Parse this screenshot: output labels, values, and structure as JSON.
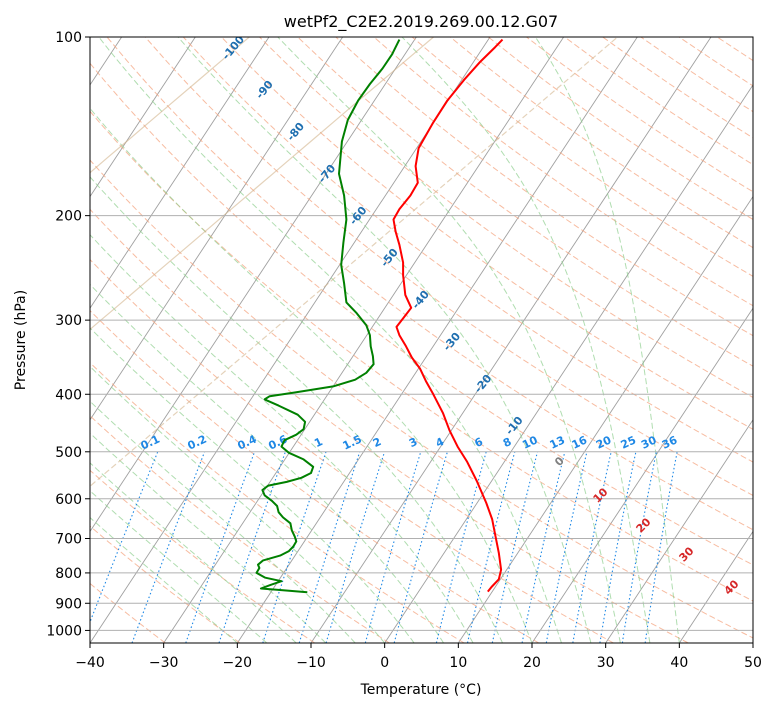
{
  "chart_data": {
    "type": "line",
    "title": "wetPf2_C2E2.2019.269.00.12.G07",
    "xlabel": "Temperature (°C)",
    "ylabel": "Pressure (hPa)",
    "xlim": [
      -40,
      50
    ],
    "ylim": [
      1050,
      100
    ],
    "y_scale": "log",
    "x_ticks": [
      -40,
      -30,
      -20,
      -10,
      0,
      10,
      20,
      30,
      40,
      50
    ],
    "y_ticks": [
      100,
      200,
      300,
      400,
      500,
      600,
      700,
      800,
      900,
      1000
    ],
    "grid": true,
    "colors": {
      "temperature": "#ff0000",
      "dewpoint": "#008000",
      "isotherm": "#a0a0a0",
      "dry_adiabat": "#f4a582",
      "moist_adiabat": "#8fcf8f",
      "mixing_ratio": "#1e88e5",
      "moist_label": "#1f6fb0",
      "dry_label": "#d62728",
      "lcl_curve": "#d2b48c"
    },
    "series": [
      {
        "key": "temperature",
        "points": [
          [
            14.0,
            860
          ],
          [
            14.5,
            845
          ],
          [
            15.5,
            820
          ],
          [
            15.8,
            790
          ],
          [
            15.5,
            740
          ],
          [
            15.0,
            690
          ],
          [
            14.6,
            650
          ],
          [
            13.8,
            610
          ],
          [
            12.5,
            560
          ],
          [
            11.2,
            520
          ],
          [
            9.9,
            490
          ],
          [
            8.8,
            460
          ],
          [
            7.9,
            430
          ],
          [
            6.6,
            400
          ],
          [
            5.6,
            380
          ],
          [
            4.8,
            362
          ],
          [
            3.7,
            347
          ],
          [
            2.9,
            332
          ],
          [
            2.0,
            318
          ],
          [
            1.6,
            308
          ],
          [
            2.5,
            298
          ],
          [
            3.6,
            286
          ],
          [
            2.8,
            272
          ],
          [
            2.5,
            252
          ],
          [
            2.5,
            240
          ],
          [
            2.0,
            224
          ],
          [
            1.5,
            213
          ],
          [
            1.2,
            203
          ],
          [
            2.0,
            195
          ],
          [
            3.5,
            185
          ],
          [
            4.5,
            176
          ],
          [
            4.2,
            165
          ],
          [
            4.6,
            154
          ],
          [
            6.5,
            140
          ],
          [
            8.5,
            128
          ],
          [
            10.8,
            118
          ],
          [
            13.0,
            110
          ],
          [
            15.0,
            104
          ],
          [
            16.0,
            101
          ]
        ]
      },
      {
        "key": "dewpoint",
        "points": [
          [
            -10.5,
            862
          ],
          [
            -14.0,
            855
          ],
          [
            -16.8,
            850
          ],
          [
            -15.5,
            838
          ],
          [
            -14.0,
            826
          ],
          [
            -16.2,
            815
          ],
          [
            -17.4,
            800
          ],
          [
            -17.0,
            785
          ],
          [
            -17.2,
            775
          ],
          [
            -16.5,
            762
          ],
          [
            -14.2,
            748
          ],
          [
            -13.0,
            735
          ],
          [
            -12.4,
            722
          ],
          [
            -12.0,
            708
          ],
          [
            -12.2,
            695
          ],
          [
            -12.6,
            678
          ],
          [
            -12.8,
            660
          ],
          [
            -13.8,
            645
          ],
          [
            -14.4,
            632
          ],
          [
            -14.6,
            617
          ],
          [
            -15.3,
            605
          ],
          [
            -16.3,
            592
          ],
          [
            -16.6,
            580
          ],
          [
            -15.8,
            570
          ],
          [
            -13.3,
            562
          ],
          [
            -11.3,
            553
          ],
          [
            -10.0,
            543
          ],
          [
            -9.7,
            530
          ],
          [
            -11.0,
            515
          ],
          [
            -13.0,
            502
          ],
          [
            -14.0,
            490
          ],
          [
            -13.6,
            478
          ],
          [
            -12.0,
            468
          ],
          [
            -11.0,
            458
          ],
          [
            -10.8,
            445
          ],
          [
            -11.8,
            433
          ],
          [
            -14.4,
            418
          ],
          [
            -16.3,
            408
          ],
          [
            -15.6,
            403
          ],
          [
            -12.0,
            397
          ],
          [
            -7.0,
            388
          ],
          [
            -4.0,
            378
          ],
          [
            -2.5,
            368
          ],
          [
            -1.5,
            356
          ],
          [
            -1.6,
            345
          ],
          [
            -1.9,
            332
          ],
          [
            -2.0,
            318
          ],
          [
            -2.5,
            306
          ],
          [
            -3.8,
            292
          ],
          [
            -5.2,
            280
          ],
          [
            -5.5,
            260
          ],
          [
            -5.9,
            242
          ],
          [
            -5.6,
            222
          ],
          [
            -5.2,
            203
          ],
          [
            -5.5,
            185
          ],
          [
            -6.2,
            170
          ],
          [
            -5.8,
            150
          ],
          [
            -5.0,
            138
          ],
          [
            -3.6,
            128
          ],
          [
            -2.0,
            120
          ],
          [
            -0.3,
            113
          ],
          [
            1.0,
            107
          ],
          [
            2.0,
            101
          ]
        ]
      }
    ],
    "moist_adiabat_labels": [
      "-100",
      "-90",
      "-80",
      "-70",
      "-60",
      "-50",
      "-40",
      "-30",
      "-20",
      "-10"
    ],
    "mixing_ratio_labels": [
      "0.1",
      "0.2",
      "0.4",
      "0.6",
      "1",
      "1.5",
      "2",
      "3",
      "4",
      "6",
      "8",
      "10",
      "13",
      "16",
      "20",
      "25",
      "30",
      "36"
    ],
    "dry_adiabat_labels": [
      "0",
      "10",
      "20",
      "30",
      "40"
    ]
  }
}
